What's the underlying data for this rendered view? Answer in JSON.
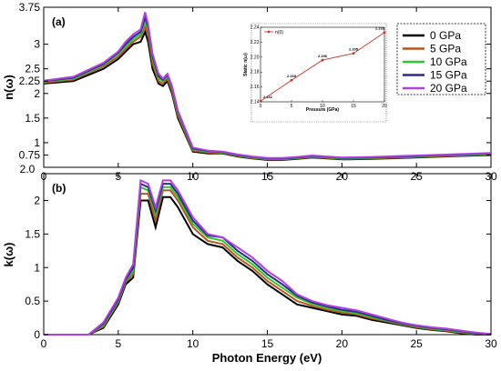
{
  "chart_data": [
    {
      "type": "line",
      "panel_label": "(a)",
      "xlabel": "",
      "ylabel": "n(ω)",
      "xlim": [
        0,
        30
      ],
      "ylim": [
        0.5,
        3.75
      ],
      "xticks": [
        "0",
        "5",
        "10",
        "15",
        "20",
        "25",
        "30"
      ],
      "yticks": [
        "0.75",
        "1",
        "1.5",
        "2",
        "2.25",
        "2.5",
        "3",
        "3.75"
      ],
      "bottom_tick_label": "2.0",
      "grid": false,
      "legend": "top-right",
      "colors": [
        "#000000",
        "#b5561f",
        "#2ec82e",
        "#2a2a8c",
        "#b040e0"
      ],
      "series": [
        {
          "name": "0 GPa",
          "x": [
            0,
            2,
            4,
            5,
            5.5,
            6,
            6.5,
            6.8,
            7,
            7.3,
            7.7,
            8,
            8.3,
            8.6,
            9,
            10,
            11,
            12,
            13,
            14,
            15,
            16,
            17,
            18,
            19,
            20,
            22,
            24,
            26,
            28,
            30
          ],
          "y": [
            2.2,
            2.25,
            2.5,
            2.7,
            2.85,
            3,
            3.05,
            3.25,
            3.05,
            2.5,
            2.2,
            2.15,
            2.25,
            2.0,
            1.5,
            0.82,
            0.78,
            0.78,
            0.72,
            0.68,
            0.65,
            0.65,
            0.67,
            0.7,
            0.68,
            0.66,
            0.67,
            0.69,
            0.71,
            0.73,
            0.75
          ]
        },
        {
          "name": "5 GPa",
          "x": [
            0,
            2,
            4,
            5,
            5.5,
            6,
            6.5,
            6.8,
            7,
            7.3,
            7.7,
            8,
            8.3,
            8.6,
            9,
            10,
            11,
            12,
            13,
            14,
            15,
            16,
            17,
            18,
            19,
            20,
            22,
            24,
            26,
            28,
            30
          ],
          "y": [
            2.22,
            2.28,
            2.55,
            2.75,
            2.9,
            3.05,
            3.15,
            3.35,
            3.2,
            2.6,
            2.25,
            2.2,
            2.3,
            2.05,
            1.55,
            0.84,
            0.8,
            0.79,
            0.73,
            0.69,
            0.66,
            0.66,
            0.68,
            0.71,
            0.69,
            0.67,
            0.68,
            0.7,
            0.72,
            0.74,
            0.76
          ]
        },
        {
          "name": "10 GPa",
          "x": [
            0,
            2,
            4,
            5,
            5.5,
            6,
            6.5,
            6.8,
            7,
            7.3,
            7.7,
            8,
            8.3,
            8.6,
            9,
            10,
            11,
            12,
            13,
            14,
            15,
            16,
            17,
            18,
            19,
            20,
            22,
            24,
            26,
            28,
            30
          ],
          "y": [
            2.24,
            2.3,
            2.58,
            2.8,
            2.95,
            3.1,
            3.2,
            3.45,
            3.3,
            2.7,
            2.3,
            2.25,
            2.35,
            2.1,
            1.6,
            0.86,
            0.82,
            0.8,
            0.74,
            0.7,
            0.67,
            0.67,
            0.69,
            0.72,
            0.7,
            0.68,
            0.69,
            0.71,
            0.73,
            0.75,
            0.77
          ]
        },
        {
          "name": "15 GPa",
          "x": [
            0,
            2,
            4,
            5,
            5.5,
            6,
            6.5,
            6.8,
            7,
            7.3,
            7.7,
            8,
            8.3,
            8.6,
            9,
            10,
            11,
            12,
            13,
            14,
            15,
            16,
            17,
            18,
            19,
            20,
            22,
            24,
            26,
            28,
            30
          ],
          "y": [
            2.25,
            2.32,
            2.6,
            2.83,
            3.0,
            3.15,
            3.25,
            3.55,
            3.35,
            2.75,
            2.35,
            2.28,
            2.38,
            2.12,
            1.63,
            0.88,
            0.83,
            0.81,
            0.75,
            0.71,
            0.68,
            0.68,
            0.7,
            0.73,
            0.71,
            0.69,
            0.7,
            0.72,
            0.74,
            0.76,
            0.78
          ]
        },
        {
          "name": "20 GPa",
          "x": [
            0,
            2,
            4,
            5,
            5.5,
            6,
            6.5,
            6.8,
            7,
            7.3,
            7.7,
            8,
            8.3,
            8.6,
            9,
            10,
            11,
            12,
            13,
            14,
            15,
            16,
            17,
            18,
            19,
            20,
            22,
            24,
            26,
            28,
            30
          ],
          "y": [
            2.26,
            2.34,
            2.62,
            2.85,
            3.05,
            3.2,
            3.3,
            3.65,
            3.4,
            2.8,
            2.4,
            2.3,
            2.4,
            2.15,
            1.65,
            0.9,
            0.84,
            0.82,
            0.76,
            0.72,
            0.69,
            0.69,
            0.71,
            0.74,
            0.72,
            0.7,
            0.71,
            0.73,
            0.75,
            0.77,
            0.79
          ]
        }
      ]
    },
    {
      "type": "line",
      "panel_label": "(b)",
      "xlabel": "Photon Energy (eV)",
      "ylabel": "k(ω)",
      "xlim": [
        0,
        30
      ],
      "ylim": [
        0,
        2.4
      ],
      "xticks": [
        "0",
        "5",
        "10",
        "15",
        "20",
        "25",
        "30"
      ],
      "yticks": [
        "0",
        "0.5",
        "1",
        "1.5",
        "2"
      ],
      "grid": false,
      "colors": [
        "#000000",
        "#b5561f",
        "#2ec82e",
        "#2a2a8c",
        "#b040e0"
      ],
      "series": [
        {
          "name": "0 GPa",
          "x": [
            0,
            3,
            4,
            5,
            5.5,
            6,
            6.5,
            7,
            7.5,
            8,
            8.5,
            9,
            10,
            11,
            12,
            13,
            14,
            15,
            16,
            17,
            18,
            19,
            20,
            21,
            22,
            23,
            24,
            25,
            26,
            27,
            28,
            29,
            30
          ],
          "y": [
            0,
            0,
            0.1,
            0.45,
            0.75,
            0.85,
            2.0,
            2.0,
            1.6,
            2.05,
            2.05,
            1.9,
            1.5,
            1.35,
            1.3,
            1.1,
            0.95,
            0.75,
            0.6,
            0.45,
            0.4,
            0.35,
            0.3,
            0.28,
            0.22,
            0.18,
            0.14,
            0.1,
            0.07,
            0.05,
            0.02,
            0,
            0
          ]
        },
        {
          "name": "5 GPa",
          "x": [
            0,
            3,
            4,
            5,
            5.5,
            6,
            6.5,
            7,
            7.5,
            8,
            8.5,
            9,
            10,
            11,
            12,
            13,
            14,
            15,
            16,
            17,
            18,
            19,
            20,
            21,
            22,
            23,
            24,
            25,
            26,
            27,
            28,
            29,
            30
          ],
          "y": [
            0,
            0,
            0.12,
            0.48,
            0.78,
            0.9,
            2.1,
            2.1,
            1.7,
            2.15,
            2.15,
            2.0,
            1.6,
            1.4,
            1.35,
            1.15,
            1.0,
            0.8,
            0.65,
            0.5,
            0.43,
            0.37,
            0.33,
            0.3,
            0.24,
            0.2,
            0.15,
            0.11,
            0.08,
            0.06,
            0.03,
            0.01,
            0
          ]
        },
        {
          "name": "10 GPa",
          "x": [
            0,
            3,
            4,
            5,
            5.5,
            6,
            6.5,
            7,
            7.5,
            8,
            8.5,
            9,
            10,
            11,
            12,
            13,
            14,
            15,
            16,
            17,
            18,
            19,
            20,
            21,
            22,
            23,
            24,
            25,
            26,
            27,
            28,
            29,
            30
          ],
          "y": [
            0,
            0,
            0.14,
            0.5,
            0.8,
            0.95,
            2.2,
            2.15,
            1.8,
            2.2,
            2.2,
            2.05,
            1.65,
            1.45,
            1.4,
            1.2,
            1.05,
            0.85,
            0.7,
            0.55,
            0.46,
            0.4,
            0.35,
            0.32,
            0.26,
            0.21,
            0.16,
            0.12,
            0.09,
            0.07,
            0.04,
            0.02,
            0
          ]
        },
        {
          "name": "15 GPa",
          "x": [
            0,
            3,
            4,
            5,
            5.5,
            6,
            6.5,
            7,
            7.5,
            8,
            8.5,
            9,
            10,
            11,
            12,
            13,
            14,
            15,
            16,
            17,
            18,
            19,
            20,
            21,
            22,
            23,
            24,
            25,
            26,
            27,
            28,
            29,
            30
          ],
          "y": [
            0,
            0,
            0.16,
            0.52,
            0.82,
            1.0,
            2.25,
            2.2,
            1.85,
            2.25,
            2.25,
            2.1,
            1.7,
            1.48,
            1.45,
            1.25,
            1.1,
            0.9,
            0.75,
            0.58,
            0.48,
            0.42,
            0.37,
            0.34,
            0.28,
            0.22,
            0.17,
            0.13,
            0.1,
            0.08,
            0.05,
            0.02,
            0
          ]
        },
        {
          "name": "20 GPa",
          "x": [
            0,
            3,
            4,
            5,
            5.5,
            6,
            6.5,
            7,
            7.5,
            8,
            8.5,
            9,
            10,
            11,
            12,
            13,
            14,
            15,
            16,
            17,
            18,
            19,
            20,
            21,
            22,
            23,
            24,
            25,
            26,
            27,
            28,
            29,
            30
          ],
          "y": [
            0,
            0,
            0.18,
            0.55,
            0.85,
            1.05,
            2.3,
            2.25,
            1.9,
            2.3,
            2.3,
            2.15,
            1.75,
            1.5,
            1.45,
            1.3,
            1.15,
            0.95,
            0.8,
            0.6,
            0.5,
            0.44,
            0.4,
            0.36,
            0.3,
            0.24,
            0.18,
            0.14,
            0.11,
            0.09,
            0.06,
            0.03,
            0.01
          ]
        }
      ]
    },
    {
      "type": "line",
      "panel_label": "inset",
      "xlabel": "Pressure (GPa)",
      "ylabel": "Static n(ω)",
      "xlim": [
        0,
        20
      ],
      "ylim": [
        2.14,
        2.24
      ],
      "xticks": [
        "0",
        "5",
        "10",
        "15",
        "20"
      ],
      "yticks": [
        "2.14",
        "2.16",
        "2.18",
        "2.20",
        "2.22",
        "2.24"
      ],
      "color": "#c0392b",
      "series": [
        {
          "name": "n(0)",
          "x": [
            0,
            5,
            10,
            15,
            20
          ],
          "y": [
            2.141,
            2.169,
            2.196,
            2.205,
            2.233
          ],
          "labels": [
            "2.141",
            "2.169",
            "2.196",
            "2.205",
            "2.233"
          ]
        }
      ]
    }
  ]
}
